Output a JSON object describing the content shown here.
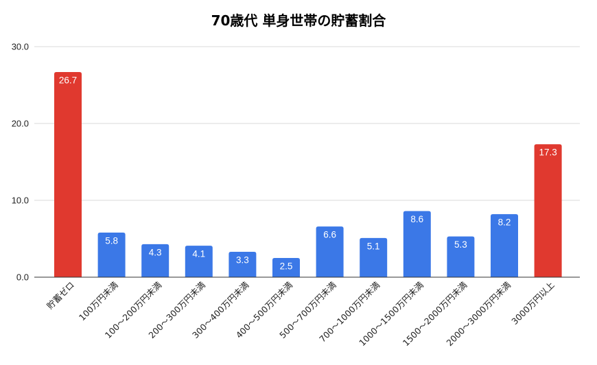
{
  "chart_data": {
    "type": "bar",
    "title": "70歳代 単身世帯の貯蓄割合",
    "xlabel": "",
    "ylabel": "",
    "ylim": [
      0,
      30
    ],
    "yticks": [
      "0.0",
      "10.0",
      "20.0",
      "30.0"
    ],
    "grid": true,
    "legend": "none",
    "categories": [
      "貯蓄ゼロ",
      "100万円未満",
      "100～200万円未満",
      "200～300万円未満",
      "300～400万円未満",
      "400～500万円未満",
      "500～700万円未満",
      "700～1000万円未満",
      "1000～1500万円未満",
      "1500～2000万円未満",
      "2000～3000万円未満",
      "3000万円以上"
    ],
    "values": [
      26.7,
      5.8,
      4.3,
      4.1,
      3.3,
      2.5,
      6.6,
      5.1,
      8.6,
      5.3,
      8.2,
      17.3
    ],
    "data_labels": [
      "26.7",
      "5.8",
      "4.3",
      "4.1",
      "3.3",
      "2.5",
      "6.6",
      "5.1",
      "8.6",
      "5.3",
      "8.2",
      "17.3"
    ],
    "bar_colors": [
      "#e0392f",
      "#3b78e7",
      "#3b78e7",
      "#3b78e7",
      "#3b78e7",
      "#3b78e7",
      "#3b78e7",
      "#3b78e7",
      "#3b78e7",
      "#3b78e7",
      "#3b78e7",
      "#e0392f"
    ]
  }
}
